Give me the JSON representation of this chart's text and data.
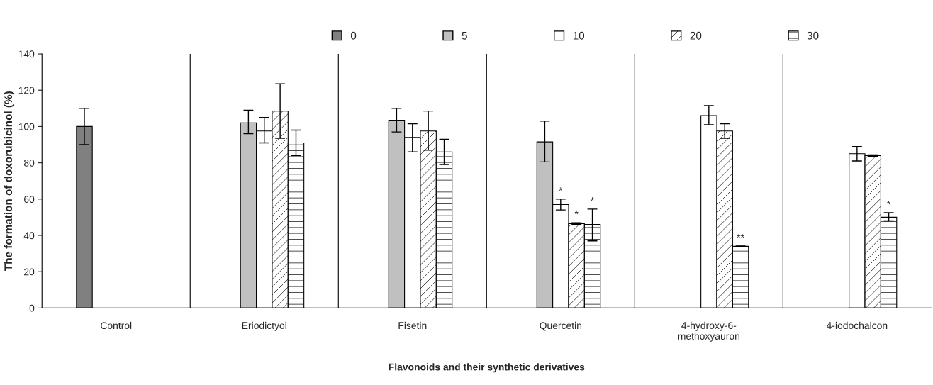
{
  "chart_data": {
    "type": "bar",
    "xlabel": "Flavonoids and their synthetic derivatives",
    "ylabel": "The formation of doxorubicinol (%)",
    "categories": [
      "Control",
      "Eriodictyol",
      "Fisetin",
      "Quercetin",
      "4-hydroxy-6-\nmethoxyauron",
      "4-iodochalcon"
    ],
    "series": [
      {
        "name": "0",
        "color": "#808080",
        "values": [
          100,
          null,
          null,
          null,
          null,
          null
        ],
        "errors": [
          [
            90,
            110
          ],
          null,
          null,
          null,
          null,
          null
        ]
      },
      {
        "name": "5",
        "color": "#c0c0c0",
        "values": [
          null,
          102,
          103.5,
          91.5,
          null,
          null
        ],
        "errors": [
          null,
          [
            96,
            109
          ],
          [
            97,
            110
          ],
          [
            80.5,
            103
          ],
          null,
          null
        ]
      },
      {
        "name": "10",
        "color": "#ffffff",
        "values": [
          null,
          97.5,
          94,
          57,
          106,
          85
        ],
        "errors": [
          null,
          [
            91,
            105
          ],
          [
            86,
            101.5
          ],
          [
            54,
            60
          ],
          [
            101,
            111.5
          ],
          [
            81,
            89
          ]
        ],
        "value_labels": [
          null,
          null,
          null,
          "*",
          null,
          null
        ]
      },
      {
        "name": "20",
        "color": "#ffffff",
        "values": [
          null,
          108.5,
          97.5,
          46.5,
          97.5,
          84
        ],
        "errors": [
          null,
          [
            93.5,
            123.5
          ],
          [
            87,
            108.5
          ],
          [
            46,
            47
          ],
          [
            93.5,
            101.5
          ],
          [
            83.6,
            84.4
          ]
        ],
        "value_labels": [
          null,
          null,
          null,
          "*",
          null,
          null
        ]
      },
      {
        "name": "30",
        "color": "#ffffff",
        "values": [
          null,
          91,
          86,
          46,
          34,
          50
        ],
        "errors": [
          null,
          [
            84,
            98
          ],
          [
            79,
            93
          ],
          [
            37,
            54.5
          ],
          [
            33.8,
            34.2
          ],
          [
            48,
            52.5
          ]
        ],
        "value_labels": [
          null,
          null,
          null,
          "*",
          "**",
          "*"
        ]
      }
    ],
    "ylim": [
      0,
      140
    ],
    "yticks": [
      0,
      20,
      40,
      60,
      80,
      100,
      120,
      140
    ],
    "grid": "x",
    "legend": "top"
  }
}
